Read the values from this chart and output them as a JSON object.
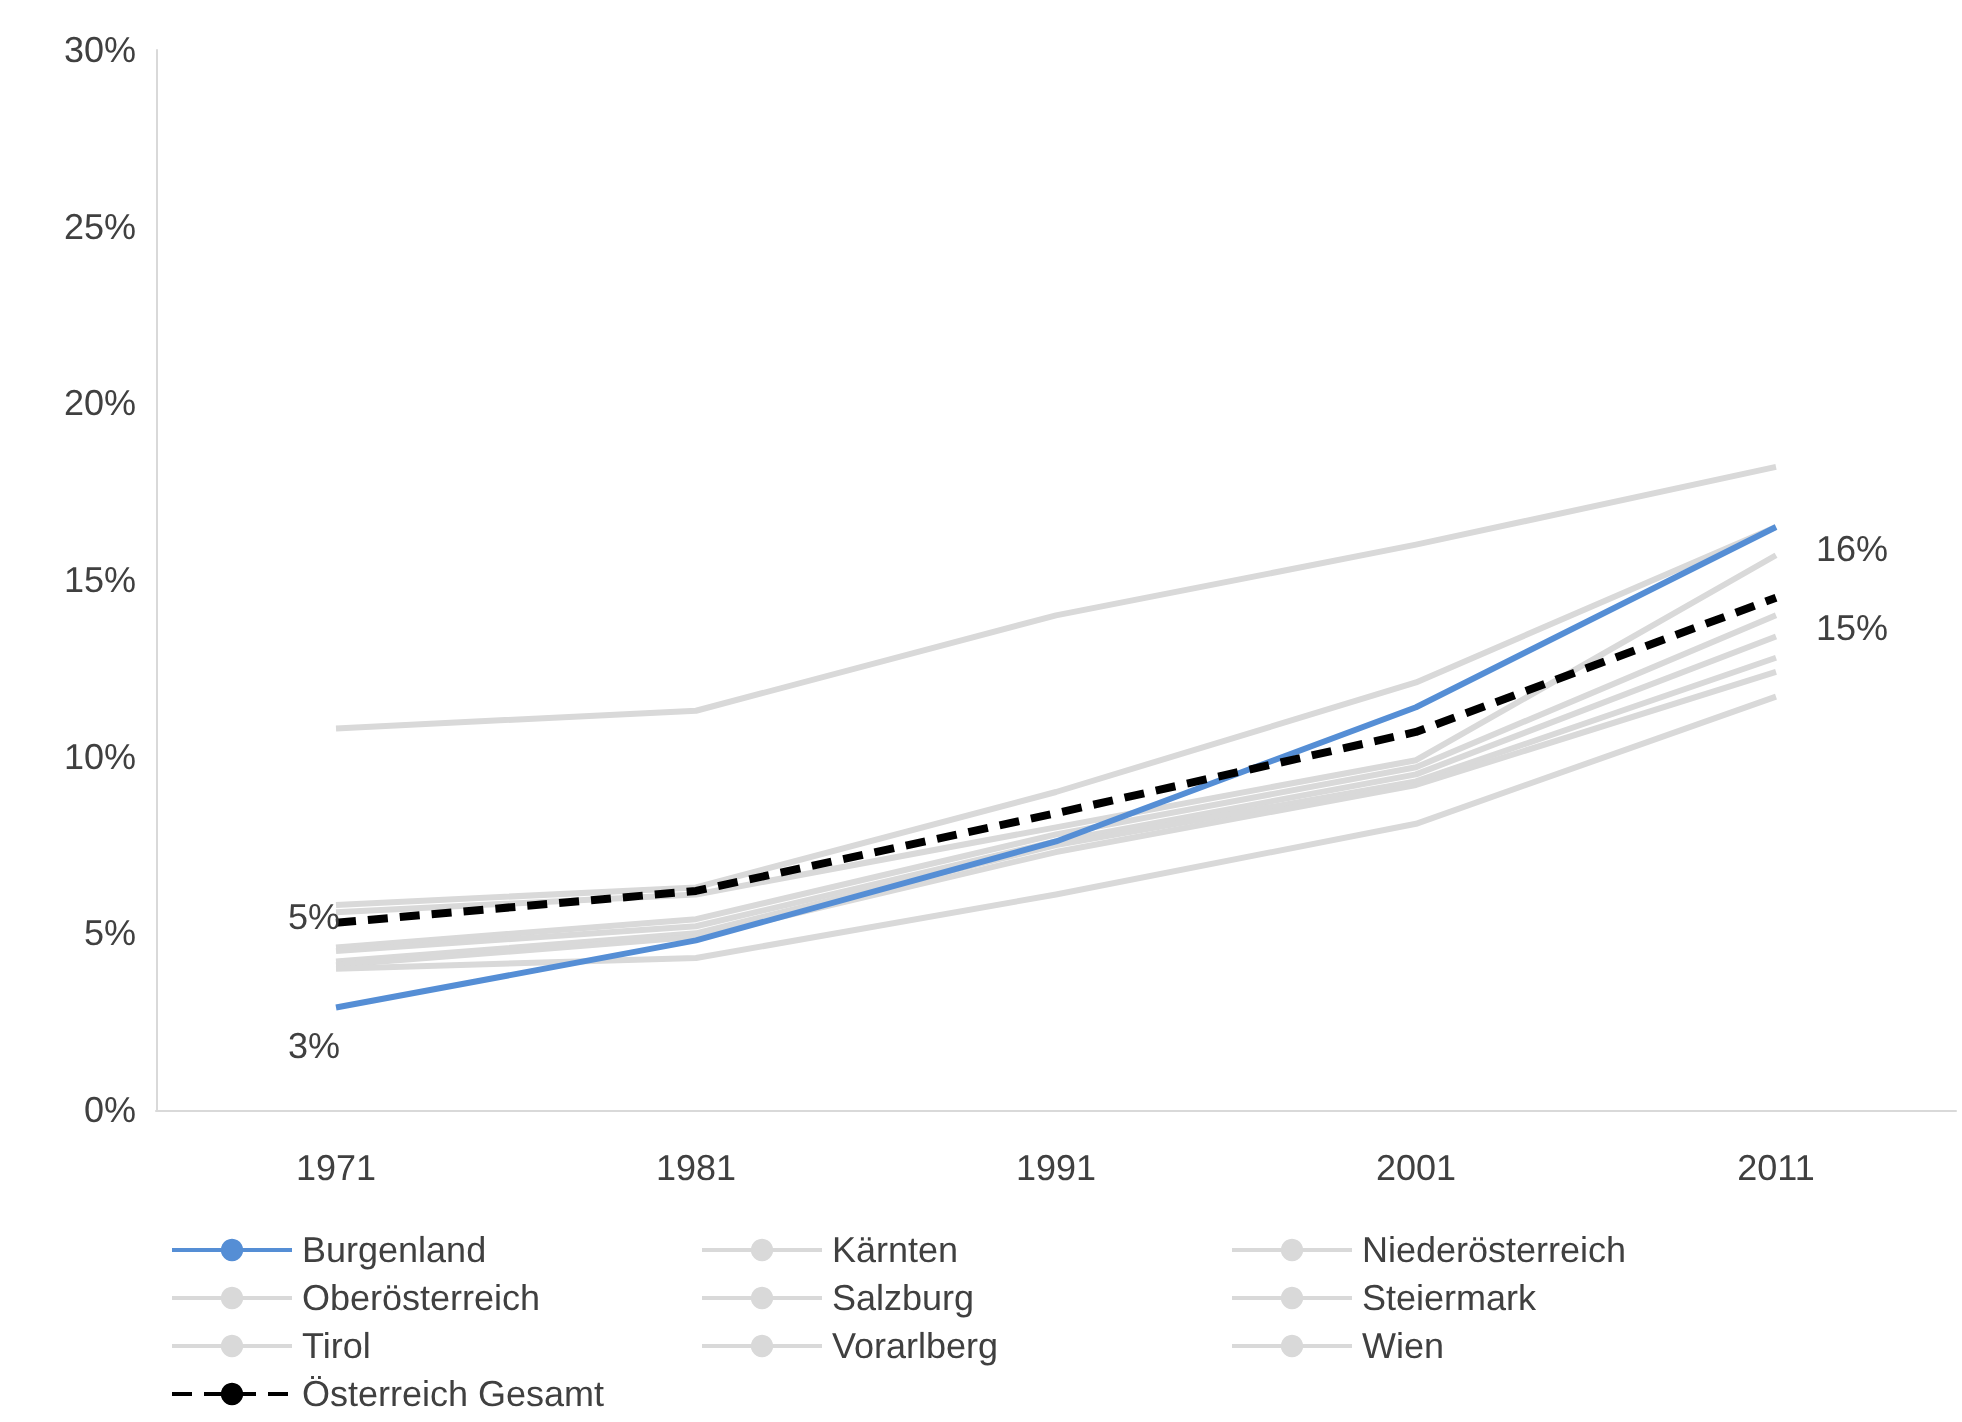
{
  "chart_data": {
    "type": "line",
    "categories": [
      "1971",
      "1981",
      "1991",
      "2001",
      "2011"
    ],
    "series": [
      {
        "name": "Burgenland",
        "color": "#558ed5",
        "values": [
          2.9,
          4.8,
          7.6,
          11.4,
          16.5
        ],
        "value_labels": [
          "3%",
          null,
          null,
          null,
          "16%"
        ]
      },
      {
        "name": "Kärnten",
        "color": "#d9d9d9",
        "values": [
          5.8,
          6.3,
          9.0,
          12.1,
          16.5
        ]
      },
      {
        "name": "Niederösterreich",
        "color": "#d9d9d9",
        "values": [
          5.6,
          6.1,
          8.0,
          9.9,
          15.7
        ]
      },
      {
        "name": "Oberösterreich",
        "color": "#d9d9d9",
        "values": [
          4.6,
          5.4,
          7.8,
          9.7,
          14.0
        ]
      },
      {
        "name": "Salzburg",
        "color": "#d9d9d9",
        "values": [
          4.5,
          5.2,
          7.6,
          9.5,
          13.4
        ]
      },
      {
        "name": "Steiermark",
        "color": "#d9d9d9",
        "values": [
          4.2,
          5.0,
          7.5,
          9.3,
          12.8
        ]
      },
      {
        "name": "Tirol",
        "color": "#d9d9d9",
        "values": [
          4.1,
          4.9,
          7.3,
          9.2,
          12.4
        ]
      },
      {
        "name": "Vorarlberg",
        "color": "#d9d9d9",
        "values": [
          4.0,
          4.3,
          6.1,
          8.1,
          11.7
        ]
      },
      {
        "name": "Wien",
        "color": "#d9d9d9",
        "values": [
          10.8,
          11.3,
          14.0,
          16.0,
          18.2
        ]
      },
      {
        "name": "Österreich Gesamt",
        "color": "#000000",
        "line_style": "dashed",
        "values": [
          5.3,
          6.2,
          8.4,
          10.7,
          14.5
        ],
        "value_labels": [
          "5%",
          null,
          null,
          null,
          "15%"
        ]
      }
    ],
    "ylim": [
      0,
      30
    ],
    "yticks": [
      {
        "value": 0,
        "label": "0%"
      },
      {
        "value": 5,
        "label": "5%"
      },
      {
        "value": 10,
        "label": "10%"
      },
      {
        "value": 15,
        "label": "15%"
      },
      {
        "value": 20,
        "label": "20%"
      },
      {
        "value": 25,
        "label": "25%"
      },
      {
        "value": 30,
        "label": "30%"
      }
    ],
    "grid": false,
    "legend": "bottom",
    "marker": "none"
  }
}
